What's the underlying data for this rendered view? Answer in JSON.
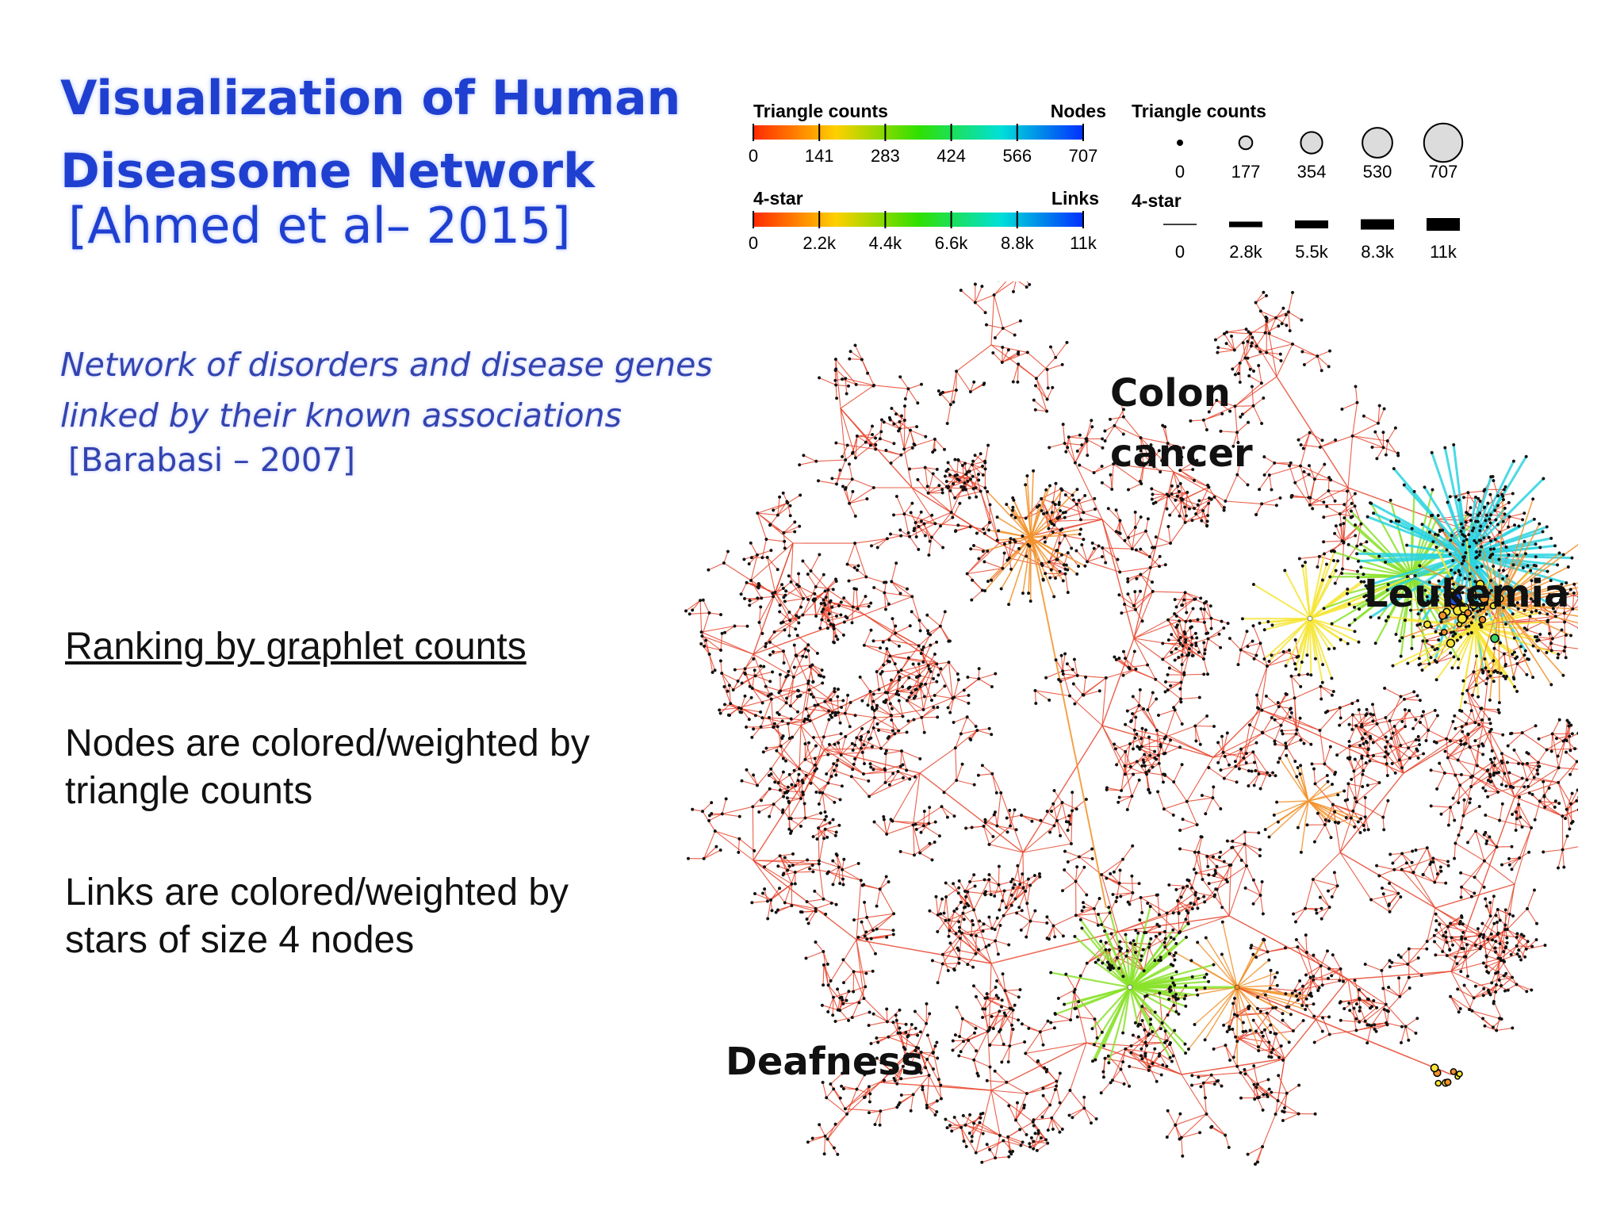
{
  "slide": {
    "title": "Visualization of Human Diseasome Network",
    "title_citation": "[Ahmed et al– 2015]",
    "subtitle": "Network of disorders and disease genes linked by their known associations",
    "subtitle_citation": "[Barabasi – 2007]",
    "ranking_heading": "Ranking by graphlet counts",
    "nodes_description": "Nodes are colored/weighted by triangle counts",
    "links_description": "Links are colored/weighted by stars of size 4 nodes"
  },
  "legend": {
    "node_color_bar": {
      "left_label": "Triangle counts",
      "right_label": "Nodes",
      "ticks": [
        "0",
        "141",
        "283",
        "424",
        "566",
        "707"
      ]
    },
    "link_color_bar": {
      "left_label": "4-star",
      "right_label": "Links",
      "ticks": [
        "0",
        "2.2k",
        "4.4k",
        "6.6k",
        "8.8k",
        "11k"
      ]
    },
    "node_size": {
      "label": "Triangle counts",
      "ticks": [
        "0",
        "177",
        "354",
        "530",
        "707"
      ]
    },
    "link_width": {
      "label": "4-star",
      "ticks": [
        "0",
        "2.8k",
        "5.5k",
        "8.3k",
        "11k"
      ]
    },
    "gradient_colors": [
      "#ff2a00",
      "#ffd000",
      "#30e000",
      "#00e0d8",
      "#0030ff"
    ]
  },
  "network": {
    "labels": {
      "colon": [
        "Colon",
        "cancer"
      ],
      "leukemia": "Leukemia",
      "deafness": "Deafness"
    },
    "colors": {
      "red": "#e8432a",
      "orange": "#f2922a",
      "yellow": "#f6e536",
      "lime": "#8ae22a",
      "cyan": "#2ad4e0",
      "blue": "#1f4fe0"
    }
  }
}
